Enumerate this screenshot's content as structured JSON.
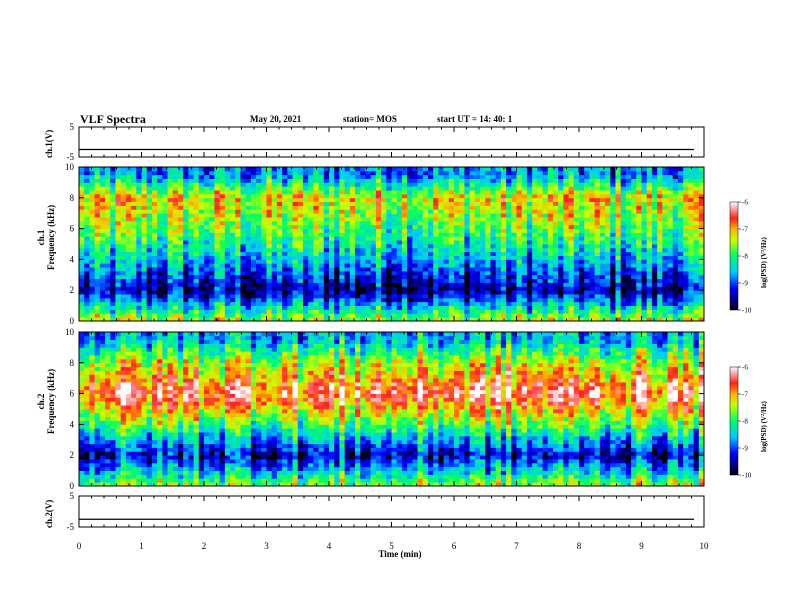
{
  "header": {
    "title": "VLF Spectra",
    "date": "May 20, 2021",
    "station": "station= MOS",
    "start": "start  UT  =   14: 40: 1"
  },
  "axes": {
    "x_label": "Time  (min)",
    "ch1_wave_label": "ch.1(V)",
    "ch2_wave_label": "ch.2(V)",
    "ch1_spec_label": "ch.1\nFrequency (kHz)",
    "ch2_spec_label": "ch.2\nFrequency (kHz)",
    "colorbar_label": "log(PSD) (V²/Hz)"
  },
  "chart_data": [
    {
      "type": "line",
      "name": "ch1-waveform",
      "ylabel": "ch.1(V)",
      "ylim": [
        -5,
        5
      ],
      "yticks": [
        5,
        -5
      ],
      "x_range": [
        0,
        10
      ],
      "baseline": -2.5
    },
    {
      "type": "heatmap",
      "name": "ch1-spectrogram",
      "ylabel": "Frequency (kHz)",
      "xlim": [
        0,
        10
      ],
      "ylim": [
        0,
        10
      ],
      "yticks": [
        0,
        2,
        4,
        6,
        8,
        10
      ],
      "colorbar": {
        "label": "log(PSD) (V²/Hz)",
        "range": [
          -10,
          -6
        ],
        "ticks": [
          -6,
          -7,
          -8,
          -9,
          -10
        ]
      },
      "intensity_profile": [
        {
          "freq_khz": 0.5,
          "level": 0.5
        },
        {
          "freq_khz": 2,
          "level": 0.1
        },
        {
          "freq_khz": 4,
          "level": 0.35
        },
        {
          "freq_khz": 6,
          "level": 0.55
        },
        {
          "freq_khz": 8,
          "level": 0.7
        },
        {
          "freq_khz": 9.5,
          "level": 0.3
        }
      ]
    },
    {
      "type": "heatmap",
      "name": "ch2-spectrogram",
      "ylabel": "Frequency (kHz)",
      "xlim": [
        0,
        10
      ],
      "ylim": [
        0,
        10
      ],
      "yticks": [
        0,
        2,
        4,
        6,
        8,
        10
      ],
      "colorbar": {
        "label": "log(PSD) (V²/Hz)",
        "range": [
          -10,
          -6
        ],
        "ticks": [
          -6,
          -7,
          -8,
          -9,
          -10
        ]
      },
      "intensity_profile": [
        {
          "freq_khz": 0.5,
          "level": 0.5
        },
        {
          "freq_khz": 2,
          "level": 0.15
        },
        {
          "freq_khz": 4,
          "level": 0.55
        },
        {
          "freq_khz": 6,
          "level": 0.9
        },
        {
          "freq_khz": 8,
          "level": 0.65
        },
        {
          "freq_khz": 9.5,
          "level": 0.35
        }
      ]
    },
    {
      "type": "line",
      "name": "ch2-waveform",
      "ylabel": "ch.2(V)",
      "ylim": [
        -5,
        5
      ],
      "yticks": [
        5,
        -5
      ],
      "x_range": [
        0,
        10
      ],
      "baseline": -2.5
    }
  ],
  "x_axis": {
    "ticks": [
      0,
      1,
      2,
      3,
      4,
      5,
      6,
      7,
      8,
      9,
      10
    ],
    "range": [
      0,
      10
    ]
  }
}
